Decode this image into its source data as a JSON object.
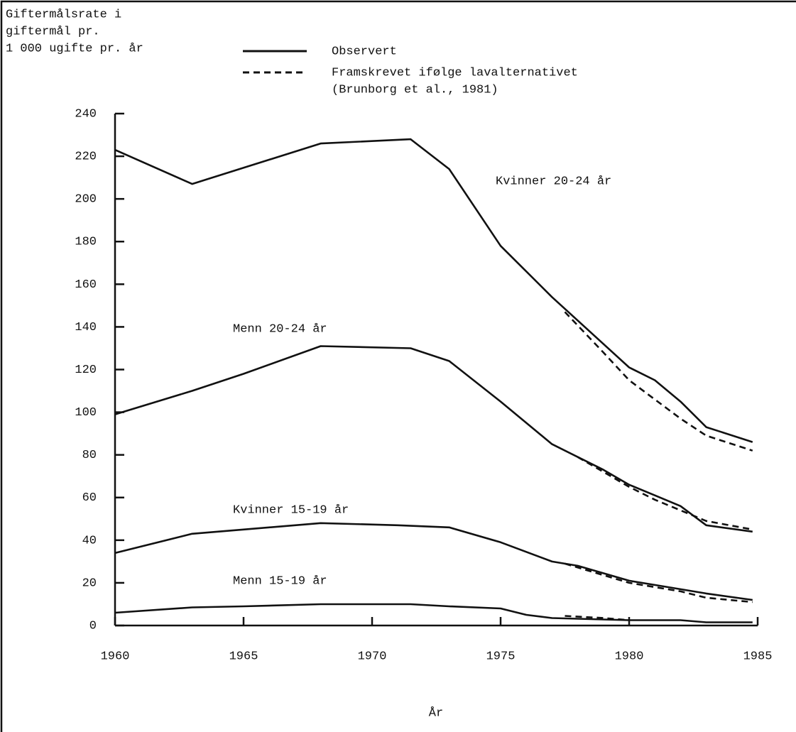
{
  "chart_data": {
    "type": "line",
    "ylabel": [
      "Giftermålsrate i",
      "giftermål pr.",
      "1 000 ugifte pr. år"
    ],
    "xlabel": "År",
    "legend": [
      {
        "label": [
          "Observert"
        ],
        "style": "solid"
      },
      {
        "label": [
          "Framskrevet ifølge lavalternativet",
          "(Brunborg et al., 1981)"
        ],
        "style": "dashed"
      }
    ],
    "color": "#111111",
    "xlim": [
      1960,
      1985
    ],
    "xticks": [
      1960,
      1965,
      1970,
      1975,
      1980,
      1985
    ],
    "ylim": [
      0,
      240
    ],
    "yticks": [
      0,
      20,
      40,
      60,
      80,
      100,
      120,
      140,
      160,
      180,
      200,
      220,
      240
    ],
    "series": [
      {
        "name": "Kvinner 20-24 år",
        "style": "solid",
        "x": [
          1960,
          1963,
          1968,
          1971.5,
          1973,
          1975,
          1977,
          1978,
          1980,
          1981,
          1982,
          1983,
          1984.8
        ],
        "values": [
          223,
          207,
          226,
          228,
          214,
          178,
          154,
          143,
          121,
          115,
          105,
          93,
          86
        ]
      },
      {
        "style": "dashed",
        "x": [
          1977.5,
          1979,
          1980,
          1981,
          1982,
          1983,
          1984.8
        ],
        "values": [
          147,
          128,
          115,
          106,
          97,
          89,
          82
        ]
      },
      {
        "name": "Menn 20-24 år",
        "style": "solid",
        "x": [
          1960,
          1963,
          1965,
          1968,
          1971.5,
          1973,
          1975,
          1977,
          1979,
          1980,
          1981,
          1982,
          1983,
          1984.8
        ],
        "values": [
          99,
          110,
          118,
          131,
          130,
          124,
          105,
          85,
          73,
          66,
          61,
          56,
          47,
          44
        ]
      },
      {
        "style": "dashed",
        "x": [
          1978,
          1980,
          1981,
          1982,
          1983,
          1984.8
        ],
        "values": [
          79,
          65,
          59,
          54,
          49,
          45
        ]
      },
      {
        "name": "Kvinner 15-19 år",
        "style": "solid",
        "x": [
          1960,
          1963,
          1965,
          1968,
          1971,
          1973,
          1975,
          1977,
          1978,
          1980,
          1981,
          1982,
          1983,
          1984.8
        ],
        "values": [
          34,
          43,
          45,
          48,
          47,
          46,
          39,
          30,
          28,
          21,
          19,
          17,
          15,
          12
        ]
      },
      {
        "style": "dashed",
        "x": [
          1977.5,
          1980,
          1981,
          1982,
          1983,
          1984.8
        ],
        "values": [
          29,
          20,
          18,
          16,
          13,
          11
        ]
      },
      {
        "name": "Menn 15-19 år",
        "style": "solid",
        "x": [
          1960,
          1963,
          1965,
          1968,
          1971.5,
          1973,
          1975,
          1976,
          1977,
          1980,
          1982,
          1983,
          1984.8
        ],
        "values": [
          6,
          8.5,
          9,
          10,
          10,
          9,
          8,
          5,
          3.5,
          2.5,
          2.5,
          1.5,
          1.5
        ]
      },
      {
        "style": "dashed",
        "x": [
          1977.5,
          1979,
          1980
        ],
        "values": [
          4.5,
          3.5,
          2.5
        ]
      }
    ]
  }
}
